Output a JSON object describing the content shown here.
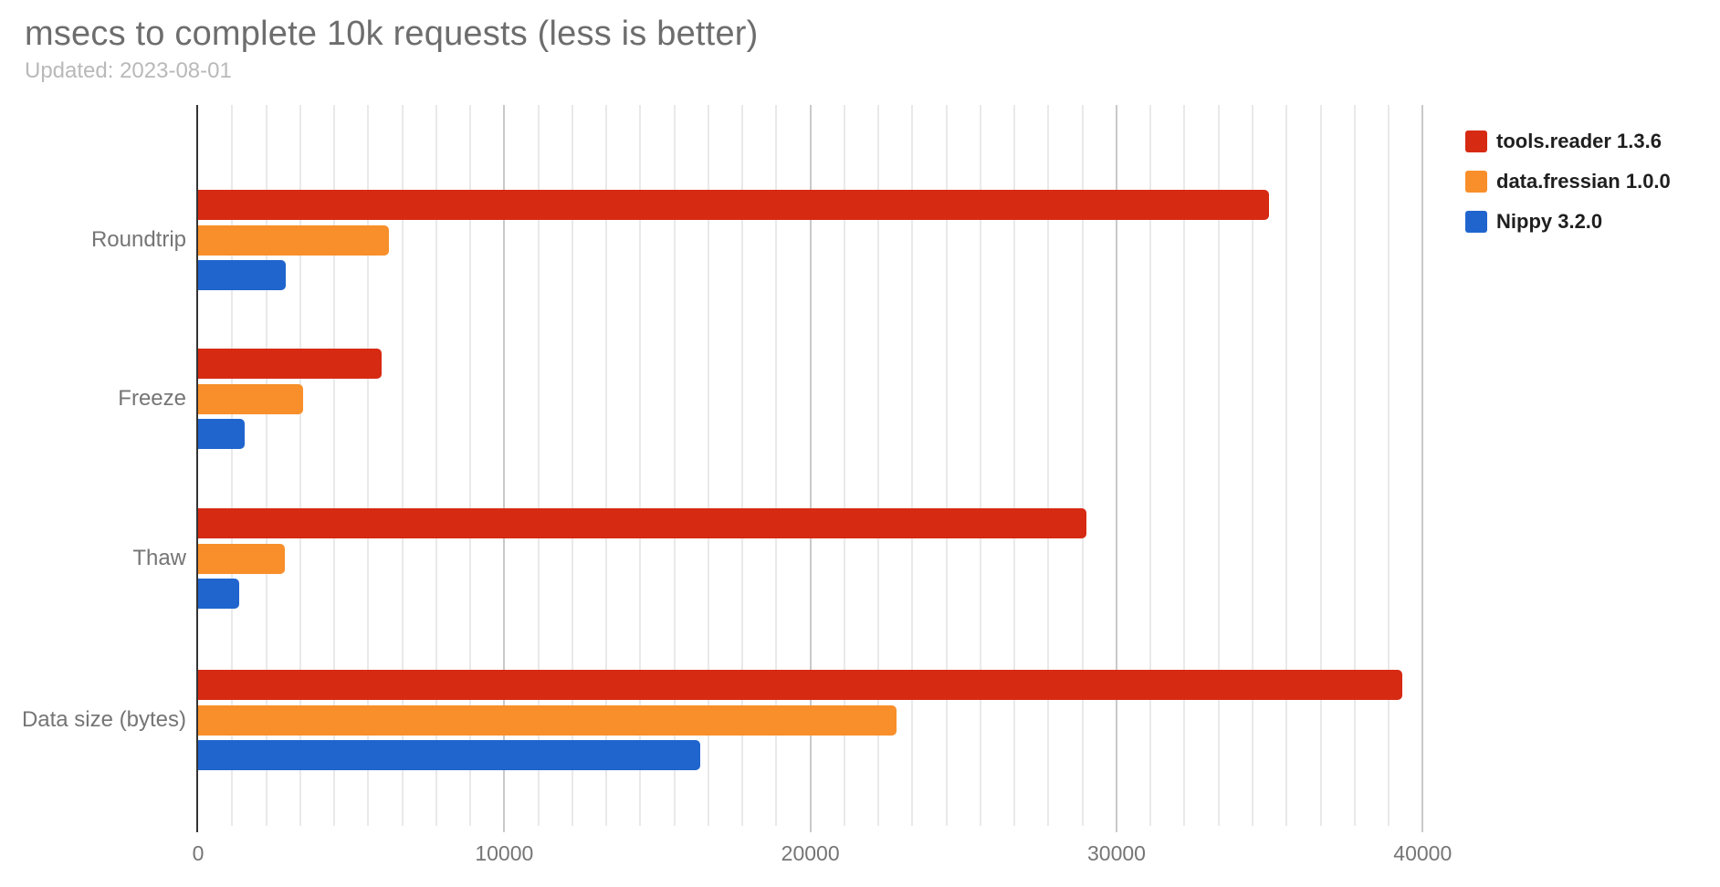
{
  "title": "msecs to complete 10k requests (less is better)",
  "subtitle": "Updated: 2023-08-01",
  "chart_data": {
    "type": "bar",
    "orientation": "horizontal",
    "title": "msecs to complete 10k requests (less is better)",
    "subtitle": "Updated: 2023-08-01",
    "xlabel": "",
    "ylabel": "",
    "categories": [
      "Roundtrip",
      "Freeze",
      "Thaw",
      "Data size (bytes)"
    ],
    "series": [
      {
        "name": "tools.reader 1.3.6",
        "color": "#d62a13",
        "values": [
          34970,
          5980,
          29030,
          39340
        ]
      },
      {
        "name": "data.fressian 1.0.0",
        "color": "#f88f2a",
        "values": [
          6230,
          3430,
          2840,
          22800
        ]
      },
      {
        "name": "Nippy 3.2.0",
        "color": "#2065cd",
        "values": [
          2850,
          1520,
          1340,
          16410
        ]
      }
    ],
    "x_ticks": [
      0,
      10000,
      20000,
      30000,
      40000
    ],
    "xlim": [
      0,
      40200
    ],
    "grid": true,
    "minor_gridlines_per_major": 9,
    "legend_position": "right",
    "colors": {
      "axis_line": "#333333",
      "major_gridline": "#c9c9c9",
      "minor_gridline": "#e9e9e9",
      "tick_label": "#757575",
      "category_label": "#757575",
      "title": "#6d6d6d",
      "subtitle": "#b9b9b9",
      "legend_text": "#1f1f1f",
      "background": "#ffffff"
    }
  }
}
